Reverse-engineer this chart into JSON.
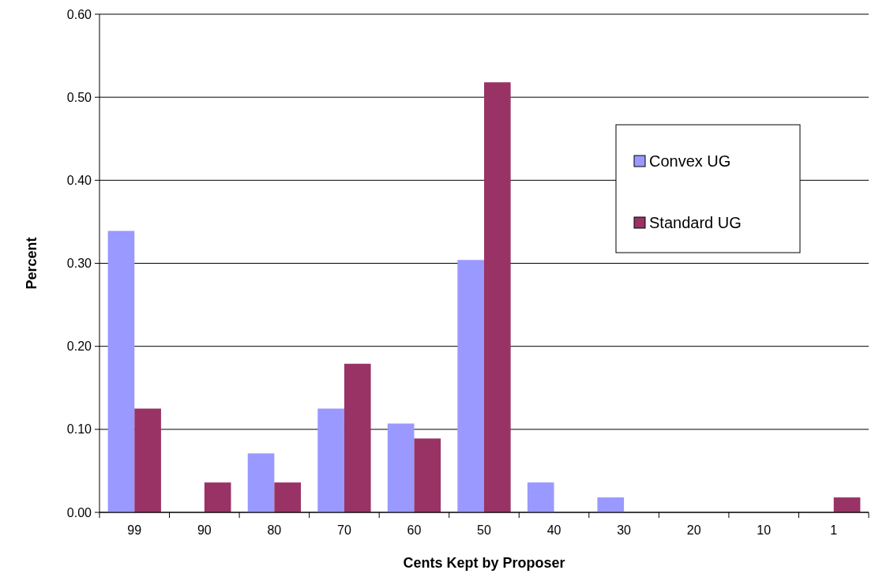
{
  "chart_data": {
    "type": "bar",
    "xlabel": "Cents Kept by Proposer",
    "ylabel": "Percent",
    "categories": [
      "99",
      "90",
      "80",
      "70",
      "60",
      "50",
      "40",
      "30",
      "20",
      "10",
      "1"
    ],
    "series": [
      {
        "name": "Convex UG",
        "color": "#9999ff",
        "values": [
          0.339,
          0,
          0.071,
          0.125,
          0.107,
          0.304,
          0.036,
          0.018,
          0,
          0,
          0
        ]
      },
      {
        "name": "Standard UG",
        "color": "#993366",
        "values": [
          0.125,
          0.036,
          0.036,
          0.179,
          0.089,
          0.518,
          0,
          0,
          0,
          0,
          0.018
        ]
      }
    ],
    "ylim": [
      0,
      0.6
    ],
    "yticks": [
      {
        "value": 0,
        "label": "0.00"
      },
      {
        "value": 0.1,
        "label": "0.10"
      },
      {
        "value": 0.2,
        "label": "0.20"
      },
      {
        "value": 0.3,
        "label": "0.30"
      },
      {
        "value": 0.4,
        "label": "0.40"
      },
      {
        "value": 0.5,
        "label": "0.50"
      },
      {
        "value": 0.6,
        "label": "0.60"
      }
    ],
    "grid": "y",
    "legend": "right"
  }
}
